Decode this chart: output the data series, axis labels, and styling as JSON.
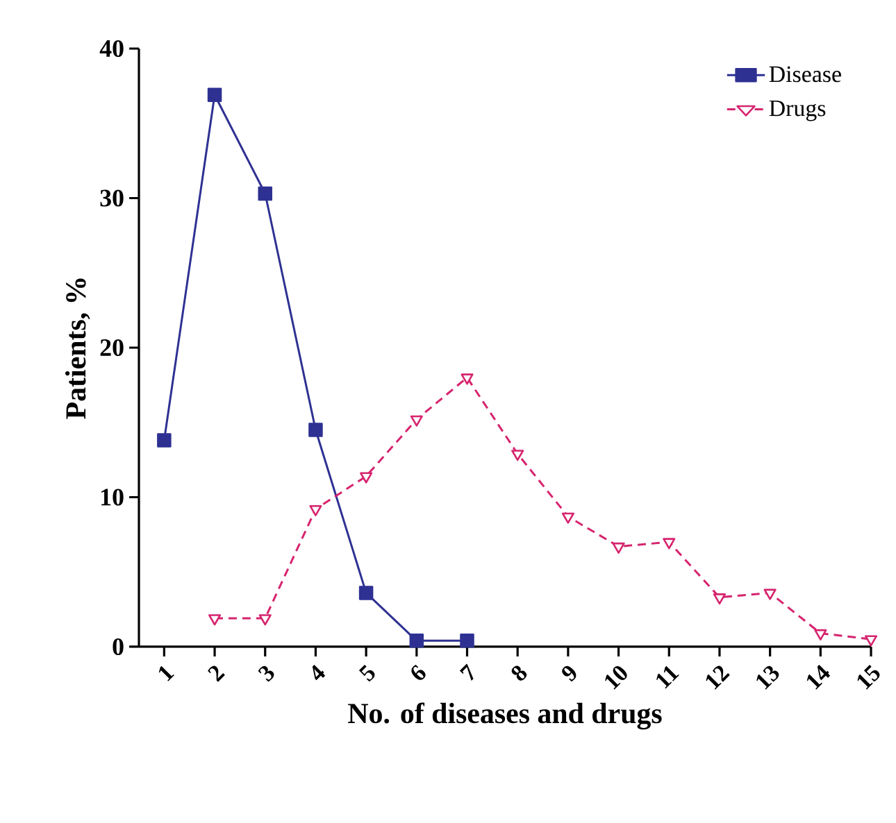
{
  "chart_data": {
    "type": "line",
    "xlabel": "No. of diseases and drugs",
    "ylabel": "Patients, %",
    "x": [
      1,
      2,
      3,
      4,
      5,
      6,
      7,
      8,
      9,
      10,
      11,
      12,
      13,
      14,
      15
    ],
    "xlim": [
      0.5,
      15
    ],
    "xticks": [
      1,
      2,
      3,
      4,
      5,
      6,
      7,
      8,
      9,
      10,
      11,
      12,
      13,
      14,
      15
    ],
    "ylim": [
      0,
      40
    ],
    "yticks": [
      0,
      10,
      20,
      30,
      40
    ],
    "grid": false,
    "legend": "top right",
    "series": [
      {
        "name": "Disease",
        "color": "#2e3192",
        "marker": "square",
        "line_style": "solid",
        "values": [
          13.8,
          36.9,
          30.3,
          14.5,
          3.6,
          0.4,
          0.4,
          null,
          null,
          null,
          null,
          null,
          null,
          null,
          null
        ]
      },
      {
        "name": "Drugs",
        "color": "#d6246e",
        "marker": "triangle",
        "line_style": "dashed",
        "values": [
          null,
          1.9,
          1.9,
          9.2,
          11.4,
          15.2,
          18.0,
          12.9,
          8.7,
          6.7,
          7.0,
          3.3,
          3.6,
          0.9,
          0.5
        ]
      }
    ]
  }
}
